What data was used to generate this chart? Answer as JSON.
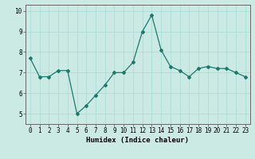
{
  "xlabel": "Humidex (Indice chaleur)",
  "x": [
    0,
    1,
    2,
    3,
    4,
    5,
    6,
    7,
    8,
    9,
    10,
    11,
    12,
    13,
    14,
    15,
    16,
    17,
    18,
    19,
    20,
    21,
    22,
    23
  ],
  "y": [
    7.7,
    6.8,
    6.8,
    7.1,
    7.1,
    5.0,
    5.4,
    5.9,
    6.4,
    7.0,
    7.0,
    7.5,
    9.0,
    9.8,
    8.1,
    7.3,
    7.1,
    6.8,
    7.2,
    7.3,
    7.2,
    7.2,
    7.0,
    6.8
  ],
  "line_color": "#1a7a6e",
  "marker": "D",
  "marker_size": 2.0,
  "line_width": 0.9,
  "ylim": [
    4.5,
    10.3
  ],
  "yticks": [
    5,
    6,
    7,
    8,
    9,
    10
  ],
  "xtick_labels": [
    "0",
    "1",
    "2",
    "3",
    "4",
    "5",
    "6",
    "7",
    "8",
    "9",
    "10",
    "11",
    "12",
    "13",
    "14",
    "15",
    "16",
    "17",
    "18",
    "19",
    "20",
    "21",
    "22",
    "23"
  ],
  "grid_color": "#aaddd5",
  "bg_color": "#cceae4",
  "tick_fontsize": 5.5,
  "label_fontsize": 6.5,
  "label_fontweight": "bold"
}
